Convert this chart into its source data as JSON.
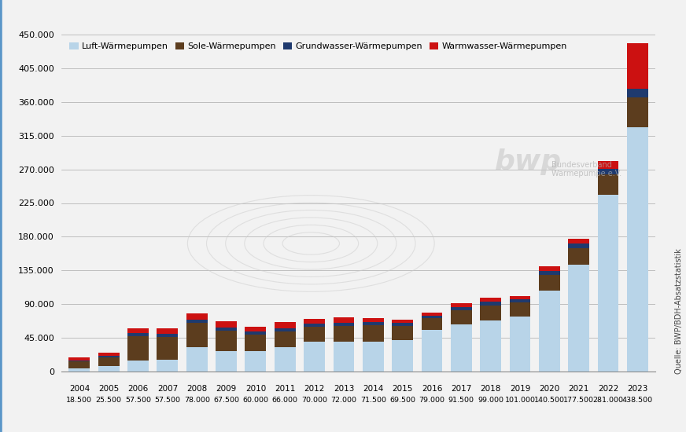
{
  "years": [
    "2004",
    "2005",
    "2006",
    "2007",
    "2008",
    "2009",
    "2010",
    "2011",
    "2012",
    "2013",
    "2014",
    "2015",
    "2016",
    "2017",
    "2018",
    "2019",
    "2020",
    "2021",
    "2022",
    "2023"
  ],
  "totals_label": [
    "18.500",
    "25.500",
    "57.500",
    "57.500",
    "78.000",
    "67.500",
    "60.000",
    "66.000",
    "70.000",
    "72.000",
    "71.500",
    "69.500",
    "79.000",
    "91.500",
    "99.000",
    "101.000",
    "140.500",
    "177.500",
    "281.000",
    "438.500"
  ],
  "luft": [
    4000,
    7000,
    15000,
    16000,
    33000,
    27000,
    27000,
    33000,
    40000,
    40000,
    40000,
    42000,
    56000,
    63000,
    68000,
    73000,
    108000,
    143000,
    236000,
    326000
  ],
  "sole": [
    9500,
    12000,
    32000,
    30000,
    32000,
    28000,
    22000,
    21000,
    20000,
    21000,
    22000,
    19000,
    15000,
    18500,
    20000,
    19000,
    21000,
    22000,
    27000,
    40000
  ],
  "grundwasser": [
    1500,
    2000,
    4500,
    4500,
    4500,
    4000,
    4000,
    4000,
    4000,
    4500,
    4500,
    4000,
    4000,
    4500,
    5000,
    4000,
    5000,
    5500,
    8000,
    12000
  ],
  "warmwasser": [
    3500,
    4500,
    6000,
    7000,
    8500,
    8500,
    7000,
    8000,
    6000,
    6500,
    5000,
    4500,
    4000,
    5500,
    6000,
    5000,
    6500,
    7000,
    10000,
    60500
  ],
  "color_luft": "#b8d4e8",
  "color_sole": "#5c3d1e",
  "color_grundwasser": "#1f3a6e",
  "color_warmwasser": "#cc1111",
  "ylim": [
    0,
    450000
  ],
  "yticks": [
    0,
    45000,
    90000,
    135000,
    180000,
    225000,
    270000,
    315000,
    360000,
    405000,
    450000
  ],
  "legend_labels": [
    "Luft-Wärmepumpen",
    "Sole-Wärmepumpen",
    "Grundwasser-Wärmepumpen",
    "Warmwasser-Wärmepumpen"
  ],
  "source_text": "Quelle: BWP/BDH-Absatzstatistik",
  "bg_color": "#f2f2f2",
  "grid_color": "#aaaaaa",
  "bwp_logo_color": "#cccccc",
  "border_color": "#5a96c8"
}
